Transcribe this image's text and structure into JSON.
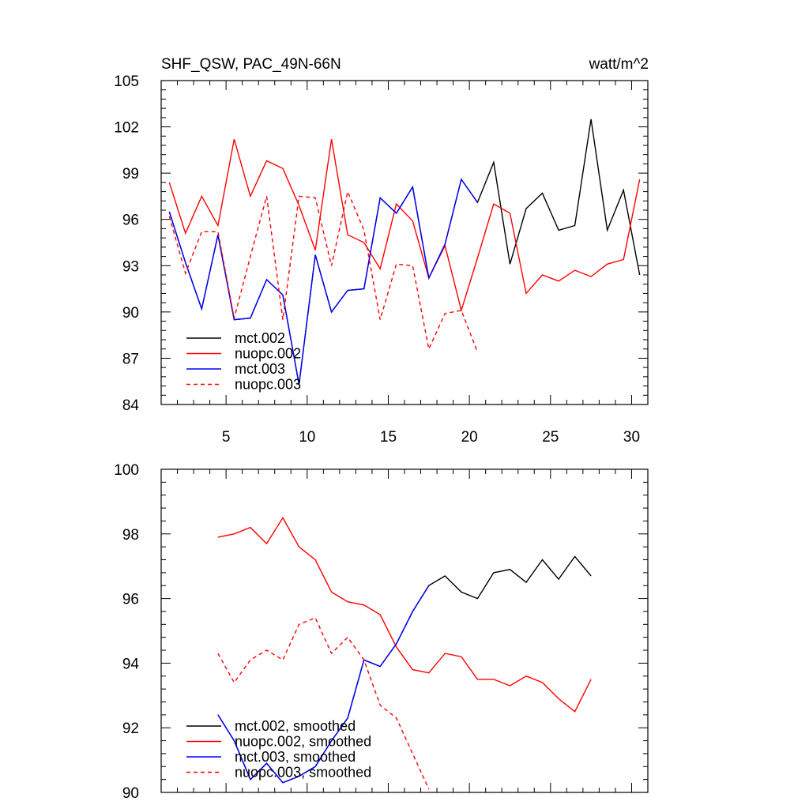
{
  "chart_data": [
    {
      "type": "line",
      "title": "SHF_QSW, PAC_49N-66N",
      "units": "watt/m^2",
      "xlim": [
        1,
        31
      ],
      "ylim": [
        84,
        105
      ],
      "xticks": [
        5,
        10,
        15,
        20,
        25,
        30
      ],
      "xtick_labels": [
        "5",
        "10",
        "15",
        "20",
        "25",
        "30"
      ],
      "yticks": [
        84,
        87,
        90,
        93,
        96,
        99,
        102,
        105
      ],
      "ytick_labels": [
        "84",
        "87",
        "90",
        "93",
        "96",
        "99",
        "102",
        "105"
      ],
      "legend_position": "bottom-left",
      "series": [
        {
          "name": "mct.002",
          "color": "#000000",
          "dash": "solid",
          "x": [
            1.5,
            2.5,
            3.5,
            4.5,
            5.5,
            6.5,
            7.5,
            8.5,
            9.5,
            10.5,
            11.5,
            12.5,
            13.5,
            14.5,
            15.5,
            16.5,
            17.5,
            18.5,
            19.5,
            20.5,
            21.5,
            22.5,
            23.5,
            24.5,
            25.5,
            26.5,
            27.5,
            28.5,
            29.5,
            30.5
          ],
          "y": [
            96.5,
            93.2,
            90.2,
            95.0,
            89.5,
            89.6,
            92.1,
            91.1,
            85.3,
            93.7,
            90.0,
            91.4,
            91.5,
            97.4,
            96.4,
            98.1,
            92.2,
            94.4,
            98.6,
            97.1,
            99.7,
            93.1,
            96.7,
            97.7,
            95.3,
            95.6,
            102.5,
            95.3,
            97.9,
            92.4
          ]
        },
        {
          "name": "nuopc.002",
          "color": "#ff0000",
          "dash": "solid",
          "x": [
            1.5,
            2.5,
            3.5,
            4.5,
            5.5,
            6.5,
            7.5,
            8.5,
            9.5,
            10.5,
            11.5,
            12.5,
            13.5,
            14.5,
            15.5,
            16.5,
            17.5,
            18.5,
            19.5,
            20.5,
            21.5,
            22.5,
            23.5,
            24.5,
            25.5,
            26.5,
            27.5,
            28.5,
            29.5,
            30.5
          ],
          "y": [
            98.4,
            95.1,
            97.5,
            95.6,
            101.2,
            97.5,
            99.8,
            99.3,
            96.9,
            94.0,
            101.2,
            95.0,
            94.5,
            92.8,
            97.0,
            95.9,
            92.2,
            94.3,
            90.1,
            93.5,
            97.0,
            96.4,
            91.2,
            92.4,
            92.0,
            92.7,
            92.3,
            93.1,
            93.4,
            98.6
          ]
        },
        {
          "name": "mct.003",
          "color": "#0000ff",
          "dash": "solid",
          "x": [
            1.5,
            2.5,
            3.5,
            4.5,
            5.5,
            6.5,
            7.5,
            8.5,
            9.5,
            10.5,
            11.5,
            12.5,
            13.5,
            14.5,
            15.5,
            16.5,
            17.5,
            18.5,
            19.5,
            20.5
          ],
          "y": [
            96.5,
            93.2,
            90.2,
            95.0,
            89.5,
            89.6,
            92.1,
            91.1,
            85.3,
            93.7,
            90.0,
            91.4,
            91.5,
            97.4,
            96.4,
            98.1,
            92.2,
            94.4,
            98.6,
            97.1
          ]
        },
        {
          "name": "nuopc.003",
          "color": "#ff0000",
          "dash": "dashed",
          "x": [
            1.5,
            2.5,
            3.5,
            4.5,
            5.5,
            6.5,
            7.5,
            8.5,
            9.5,
            10.5,
            11.5,
            12.5,
            13.5,
            14.5,
            15.5,
            16.5,
            17.5,
            18.5,
            19.5,
            20.5
          ],
          "y": [
            96.2,
            92.5,
            95.2,
            95.2,
            89.6,
            93.6,
            97.5,
            89.5,
            97.5,
            97.4,
            93.0,
            97.8,
            95.3,
            89.5,
            93.1,
            93.0,
            87.6,
            89.9,
            90.1,
            87.4
          ]
        }
      ]
    },
    {
      "type": "line",
      "xlim": [
        1,
        31
      ],
      "ylim": [
        90,
        100
      ],
      "xticks": [
        5,
        10,
        15,
        20,
        25,
        30
      ],
      "yticks": [
        90,
        92,
        94,
        96,
        98,
        100
      ],
      "ytick_labels": [
        "90",
        "92",
        "94",
        "96",
        "98",
        "100"
      ],
      "legend_position": "bottom-left",
      "series": [
        {
          "name": "mct.002, smoothed",
          "color": "#000000",
          "dash": "solid",
          "x": [
            4.5,
            5.5,
            6.5,
            7.5,
            8.5,
            9.5,
            10.5,
            11.5,
            12.5,
            13.5,
            14.5,
            15.5,
            16.5,
            17.5,
            18.5,
            19.5,
            20.5,
            21.5,
            22.5,
            23.5,
            24.5,
            25.5,
            26.5,
            27.5
          ],
          "y": [
            92.4,
            91.6,
            90.4,
            90.9,
            90.3,
            90.5,
            90.8,
            91.6,
            92.3,
            94.1,
            93.9,
            94.6,
            95.6,
            96.4,
            96.7,
            96.2,
            96.0,
            96.8,
            96.9,
            96.5,
            97.2,
            96.6,
            97.3,
            96.7
          ]
        },
        {
          "name": "nuopc.002, smoothed",
          "color": "#ff0000",
          "dash": "solid",
          "x": [
            4.5,
            5.5,
            6.5,
            7.5,
            8.5,
            9.5,
            10.5,
            11.5,
            12.5,
            13.5,
            14.5,
            15.5,
            16.5,
            17.5,
            18.5,
            19.5,
            20.5,
            21.5,
            22.5,
            23.5,
            24.5,
            25.5,
            26.5,
            27.5
          ],
          "y": [
            97.9,
            98.0,
            98.2,
            97.7,
            98.5,
            97.6,
            97.2,
            96.2,
            95.9,
            95.8,
            95.5,
            94.5,
            93.8,
            93.7,
            94.3,
            94.2,
            93.5,
            93.5,
            93.3,
            93.6,
            93.4,
            92.9,
            92.5,
            93.5
          ]
        },
        {
          "name": "mct.003, smoothed",
          "color": "#0000ff",
          "dash": "solid",
          "x": [
            4.5,
            5.5,
            6.5,
            7.5,
            8.5,
            9.5,
            10.5,
            11.5,
            12.5,
            13.5,
            14.5,
            15.5,
            16.5,
            17.5
          ],
          "y": [
            92.4,
            91.6,
            90.4,
            90.9,
            90.3,
            90.5,
            90.8,
            91.6,
            92.3,
            94.1,
            93.9,
            94.6,
            95.6,
            96.4
          ]
        },
        {
          "name": "nuopc.003, smoothed",
          "color": "#ff0000",
          "dash": "dashed",
          "x": [
            4.5,
            5.5,
            6.5,
            7.5,
            8.5,
            9.5,
            10.5,
            11.5,
            12.5,
            13.5,
            14.5,
            15.5,
            16.5,
            17.5
          ],
          "y": [
            94.3,
            93.4,
            94.1,
            94.4,
            94.1,
            95.2,
            95.4,
            94.3,
            94.8,
            94.1,
            92.7,
            92.3,
            91.2,
            90.1
          ]
        }
      ]
    }
  ]
}
